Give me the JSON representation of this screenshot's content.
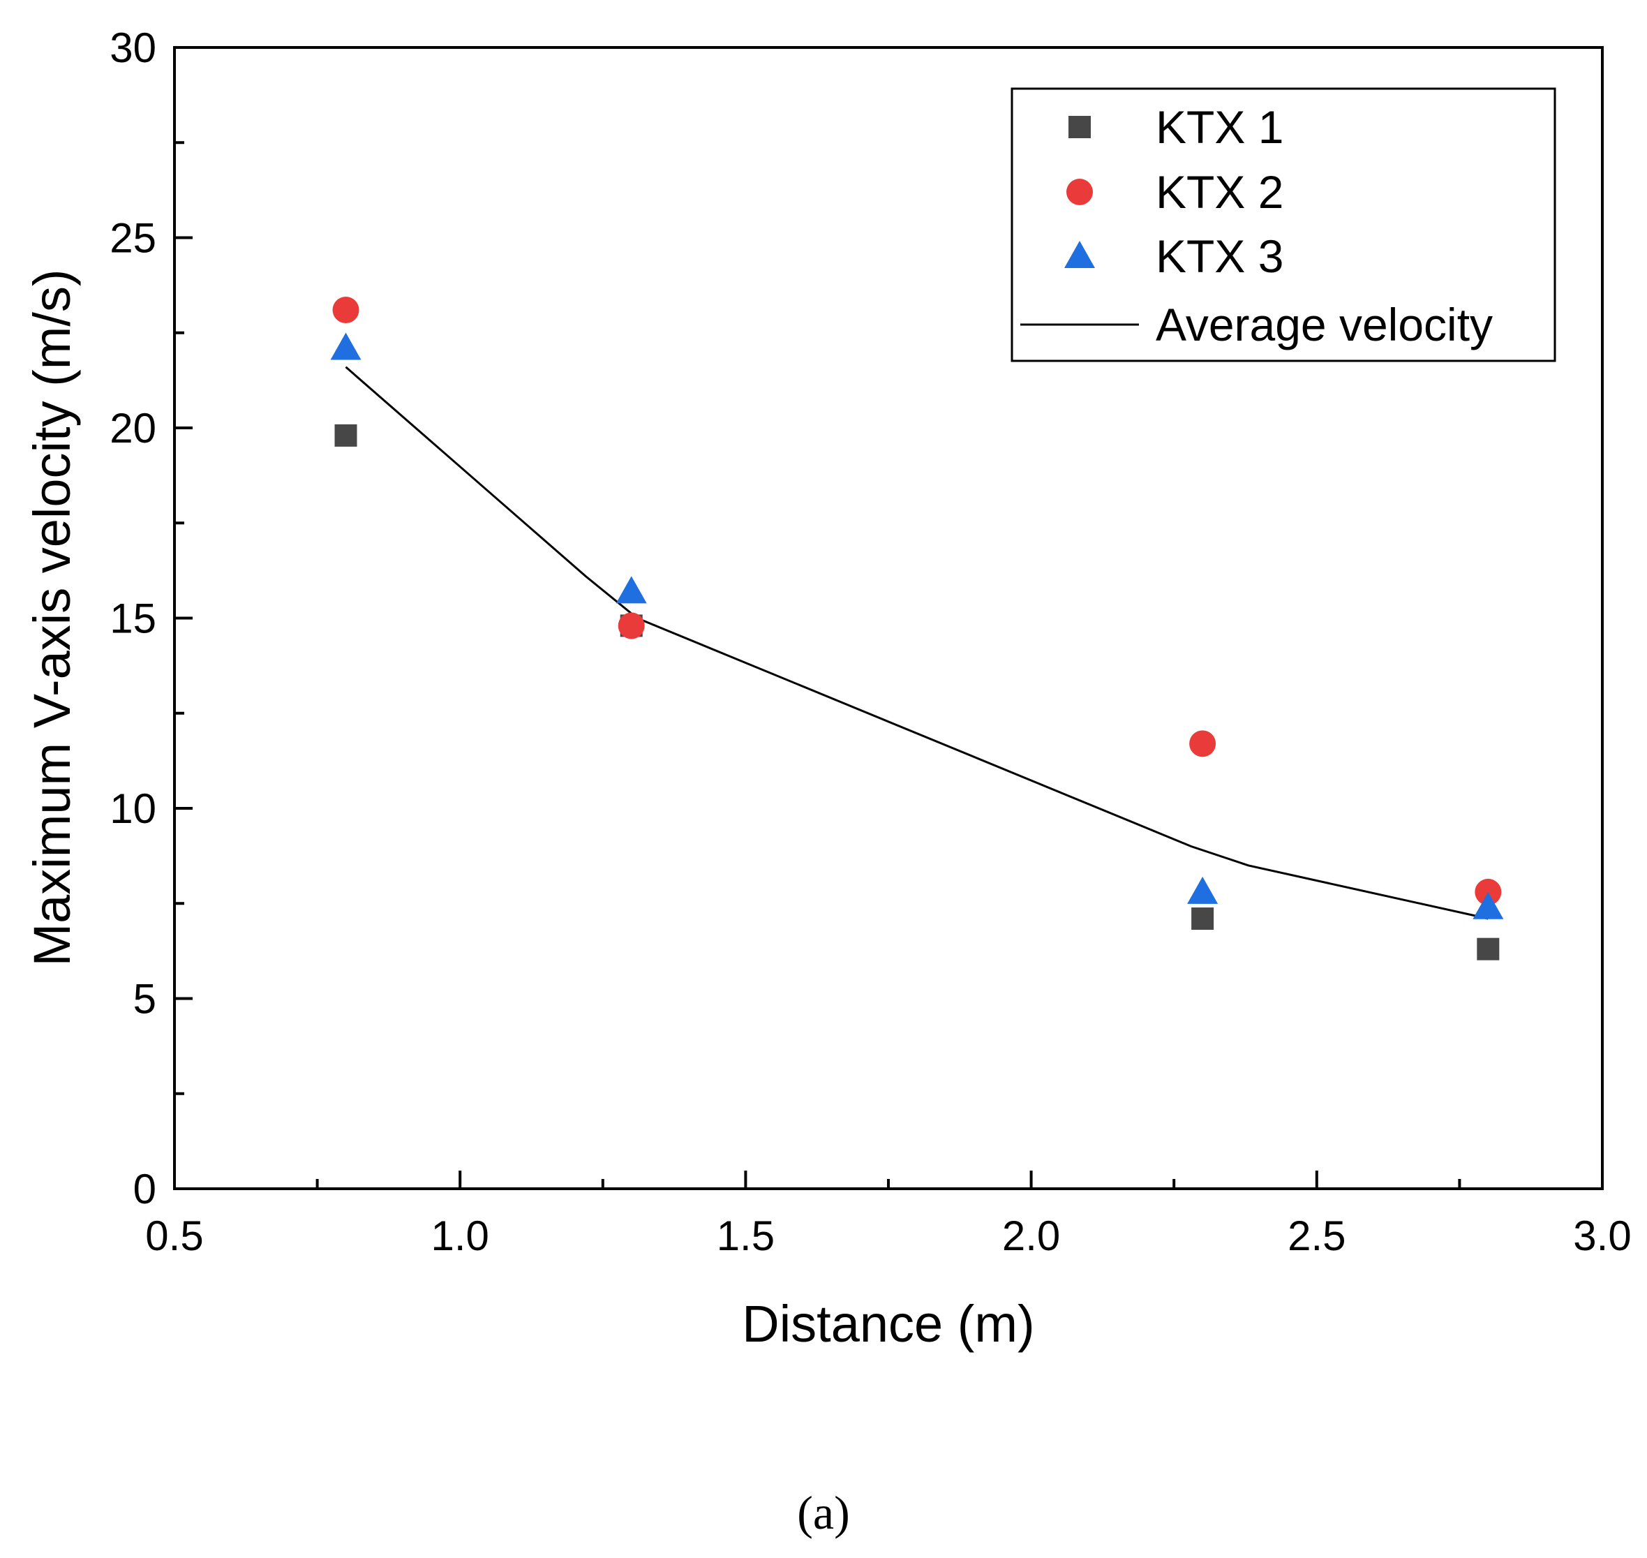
{
  "chart_data": {
    "type": "scatter",
    "xlabel": "Distance (m)",
    "ylabel": "Maximum V-axis velocity (m/s)",
    "xlim": [
      0.5,
      3.0
    ],
    "ylim": [
      0,
      30
    ],
    "x_ticks": [
      "0.5",
      "1.0",
      "1.5",
      "2.0",
      "2.5",
      "3.0"
    ],
    "y_ticks": [
      "0",
      "5",
      "10",
      "15",
      "20",
      "25",
      "30"
    ],
    "grid": false,
    "legend_position": "top-right",
    "series": [
      {
        "name": "KTX 1",
        "marker": "square",
        "color": "#474747",
        "points": [
          [
            0.8,
            19.8
          ],
          [
            1.3,
            14.8
          ],
          [
            2.3,
            7.1
          ],
          [
            2.8,
            6.3
          ]
        ]
      },
      {
        "name": "KTX 2",
        "marker": "circle",
        "color": "#ea3b3b",
        "points": [
          [
            0.8,
            23.1
          ],
          [
            1.3,
            14.8
          ],
          [
            2.3,
            11.7
          ],
          [
            2.8,
            7.8
          ]
        ]
      },
      {
        "name": "KTX 3",
        "marker": "triangle",
        "color": "#1f6fe0",
        "points": [
          [
            0.8,
            22.1
          ],
          [
            1.3,
            15.7
          ],
          [
            2.3,
            7.8
          ],
          [
            2.8,
            7.4
          ]
        ]
      },
      {
        "name": "Average velocity",
        "marker": "line",
        "color": "#000000",
        "points": [
          [
            0.8,
            21.6
          ],
          [
            1.22,
            16.1
          ],
          [
            1.31,
            15.0
          ],
          [
            2.28,
            9.0
          ],
          [
            2.38,
            8.5
          ],
          [
            2.8,
            7.1
          ]
        ]
      }
    ]
  },
  "caption": "(a)"
}
